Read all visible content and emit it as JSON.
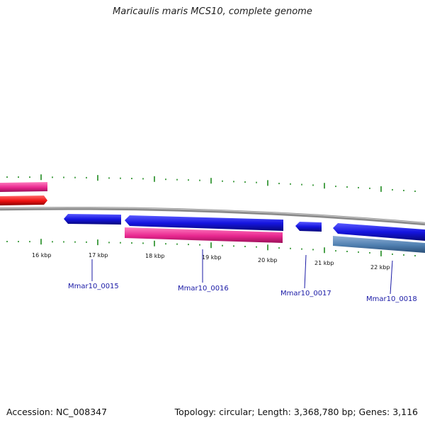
{
  "title": "Maricaulis maris MCS10, complete genome",
  "footer": {
    "accession": "Accession: NC_008347",
    "summary": "Topology: circular; Length: 3,368,780 bp; Genes: 3,116"
  },
  "scale_labels": [
    "16 kbp",
    "17 kbp",
    "18 kbp",
    "19 kbp",
    "20 kbp",
    "21 kbp",
    "22 kbp"
  ],
  "gene_labels": [
    "Mmar10_0015",
    "Mmar10_0016",
    "Mmar10_0017",
    "Mmar10_0018"
  ],
  "colors": {
    "backbone": "#8a8a8a",
    "ticks": "#1f8a1f",
    "gene_blue": "#1515e0",
    "gene_pink": "#e8278f",
    "gene_red": "#ee1111",
    "gene_steel": "#4f7fb0",
    "label": "#1a1aa6"
  }
}
